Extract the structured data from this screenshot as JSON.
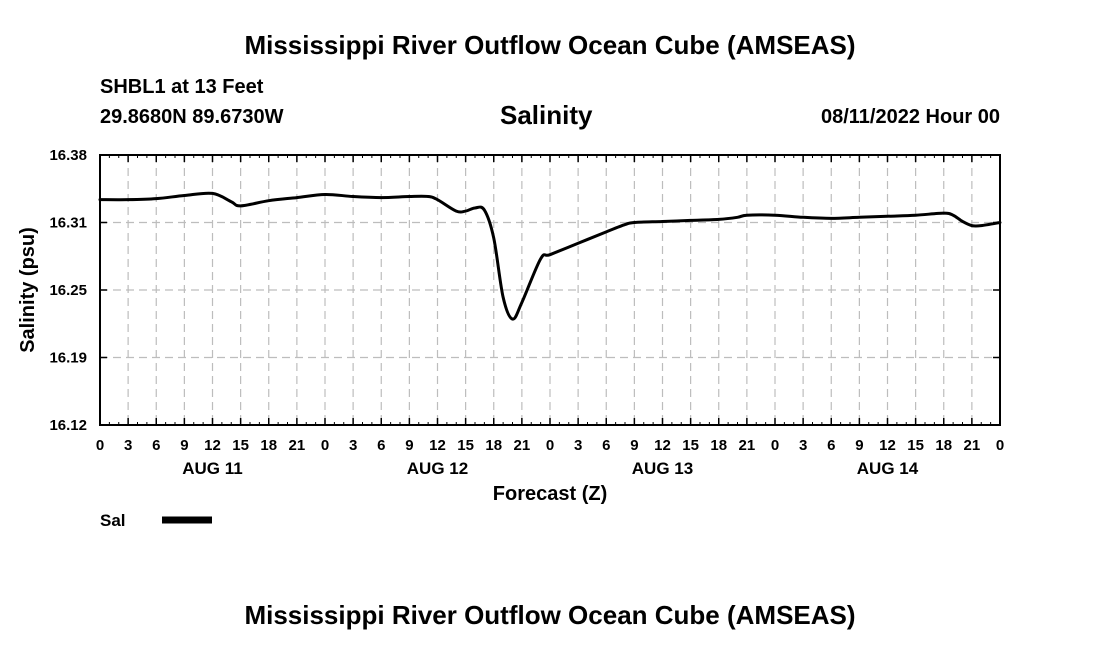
{
  "header": {
    "title": "Mississippi River Outflow Ocean Cube (AMSEAS)",
    "station": "SHBL1 at 13 Feet",
    "coordinates": "29.8680N  89.6730W",
    "chart_title": "Salinity",
    "datetime": "08/11/2022 Hour 00"
  },
  "footer": {
    "title": "Mississippi River Outflow Ocean Cube (AMSEAS)"
  },
  "chart_data": {
    "type": "line",
    "title": "Salinity",
    "xlabel": "Forecast (Z)",
    "ylabel": "Salinity (psu)",
    "ylim": [
      16.12,
      16.38
    ],
    "xlim": [
      0,
      96
    ],
    "x_unit": "hours from 08/11/2022 00Z",
    "y_ticks": [
      "16.12",
      "16.19",
      "16.25",
      "16.31",
      "16.38"
    ],
    "y_tick_values": [
      16.12,
      16.185,
      16.25,
      16.315,
      16.38
    ],
    "x_tick_labels": [
      "0",
      "3",
      "6",
      "9",
      "12",
      "15",
      "18",
      "21",
      "0",
      "3",
      "6",
      "9",
      "12",
      "15",
      "18",
      "21",
      "0",
      "3",
      "6",
      "9",
      "12",
      "15",
      "18",
      "21",
      "0",
      "3",
      "6",
      "9",
      "12",
      "15",
      "18",
      "21",
      "0"
    ],
    "day_labels": [
      {
        "label": "AUG 11",
        "hour": 12
      },
      {
        "label": "AUG 12",
        "hour": 36
      },
      {
        "label": "AUG 13",
        "hour": 60
      },
      {
        "label": "AUG 14",
        "hour": 84
      }
    ],
    "grid": true,
    "legend_position": "bottom-left",
    "series": [
      {
        "name": "Sal",
        "color": "#000000",
        "x": [
          0,
          3,
          6,
          9,
          12,
          14,
          15,
          18,
          21,
          24,
          27,
          30,
          33,
          35,
          36,
          38,
          39,
          40,
          41,
          42,
          43,
          44,
          45,
          47,
          48,
          51,
          54,
          56,
          57,
          60,
          63,
          66,
          68,
          69,
          72,
          75,
          78,
          81,
          84,
          87,
          90,
          91,
          92,
          93,
          94,
          96
        ],
        "y": [
          16.337,
          16.337,
          16.338,
          16.341,
          16.343,
          16.335,
          16.331,
          16.336,
          16.339,
          16.342,
          16.34,
          16.339,
          16.34,
          16.34,
          16.337,
          16.326,
          16.326,
          16.329,
          16.327,
          16.3,
          16.243,
          16.222,
          16.238,
          16.28,
          16.284,
          16.295,
          16.306,
          16.313,
          16.315,
          16.316,
          16.317,
          16.318,
          16.32,
          16.322,
          16.322,
          16.32,
          16.319,
          16.32,
          16.321,
          16.322,
          16.324,
          16.322,
          16.316,
          16.312,
          16.312,
          16.315
        ]
      }
    ]
  }
}
